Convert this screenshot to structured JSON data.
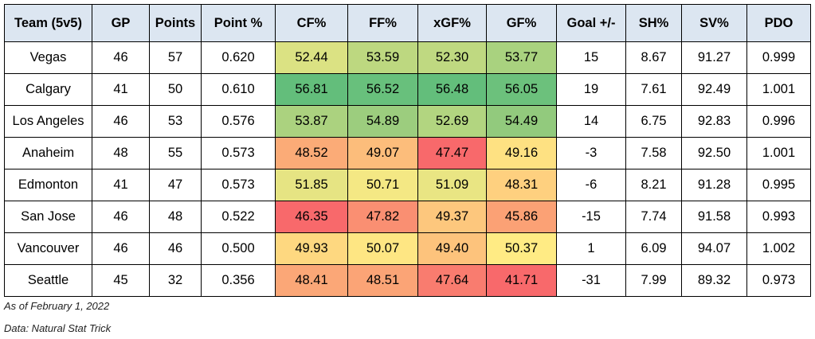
{
  "table": {
    "header": [
      "Team (5v5)",
      "GP",
      "Points",
      "Point %",
      "CF%",
      "FF%",
      "xGF%",
      "GF%",
      "Goal +/-",
      "SH%",
      "SV%",
      "PDO"
    ],
    "rows": [
      [
        "Vegas",
        "46",
        "57",
        "0.620",
        "52.44",
        "53.59",
        "52.30",
        "53.77",
        "15",
        "8.67",
        "91.27",
        "0.999"
      ],
      [
        "Calgary",
        "41",
        "50",
        "0.610",
        "56.81",
        "56.52",
        "56.48",
        "56.05",
        "19",
        "7.61",
        "92.49",
        "1.001"
      ],
      [
        "Los Angeles",
        "46",
        "53",
        "0.576",
        "53.87",
        "54.89",
        "52.69",
        "54.49",
        "14",
        "6.75",
        "92.83",
        "0.996"
      ],
      [
        "Anaheim",
        "48",
        "55",
        "0.573",
        "48.52",
        "49.07",
        "47.47",
        "49.16",
        "-3",
        "7.58",
        "92.50",
        "1.001"
      ],
      [
        "Edmonton",
        "41",
        "47",
        "0.573",
        "51.85",
        "50.71",
        "51.09",
        "48.31",
        "-6",
        "8.21",
        "91.28",
        "0.995"
      ],
      [
        "San Jose",
        "46",
        "48",
        "0.522",
        "46.35",
        "47.82",
        "49.37",
        "45.86",
        "-15",
        "7.74",
        "91.58",
        "0.993"
      ],
      [
        "Vancouver",
        "46",
        "46",
        "0.500",
        "49.93",
        "50.07",
        "49.40",
        "50.37",
        "1",
        "6.09",
        "94.07",
        "1.002"
      ],
      [
        "Seattle",
        "45",
        "32",
        "0.356",
        "48.41",
        "48.51",
        "47.64",
        "41.71",
        "-31",
        "7.99",
        "89.32",
        "0.973"
      ]
    ],
    "cell_colors": [
      [
        null,
        null,
        null,
        null,
        "#dbe283",
        "#bdd880",
        "#bfd981",
        "#a9d27f",
        null,
        null,
        null,
        null
      ],
      [
        null,
        null,
        null,
        null,
        "#63be7b",
        "#68c07c",
        "#63be7b",
        "#6cc17c",
        null,
        null,
        null,
        null
      ],
      [
        null,
        null,
        null,
        null,
        "#abd27f",
        "#9ccd7e",
        "#b2d580",
        "#92ca7d",
        null,
        null,
        null,
        null
      ],
      [
        null,
        null,
        null,
        null,
        "#fbab77",
        "#fcbd7b",
        "#f8696b",
        "#fee182",
        null,
        null,
        null,
        null
      ],
      [
        null,
        null,
        null,
        null,
        "#e6e483",
        "#f4e884",
        "#e9e583",
        "#fed07f",
        null,
        null,
        null,
        null
      ],
      [
        null,
        null,
        null,
        null,
        "#f8696b",
        "#fa8f72",
        "#fdc77d",
        "#fba175",
        null,
        null,
        null,
        null
      ],
      [
        null,
        null,
        null,
        null,
        "#fed880",
        "#fee683",
        "#fdc37c",
        "#ffeb84",
        null,
        null,
        null,
        null
      ],
      [
        null,
        null,
        null,
        null,
        "#fba777",
        "#fba476",
        "#f97c6f",
        "#f8696b",
        null,
        null,
        null,
        null
      ]
    ],
    "header_color": "#dce6f1"
  },
  "notes": [
    "As of February 1, 2022",
    "Data: Natural Stat Trick"
  ]
}
